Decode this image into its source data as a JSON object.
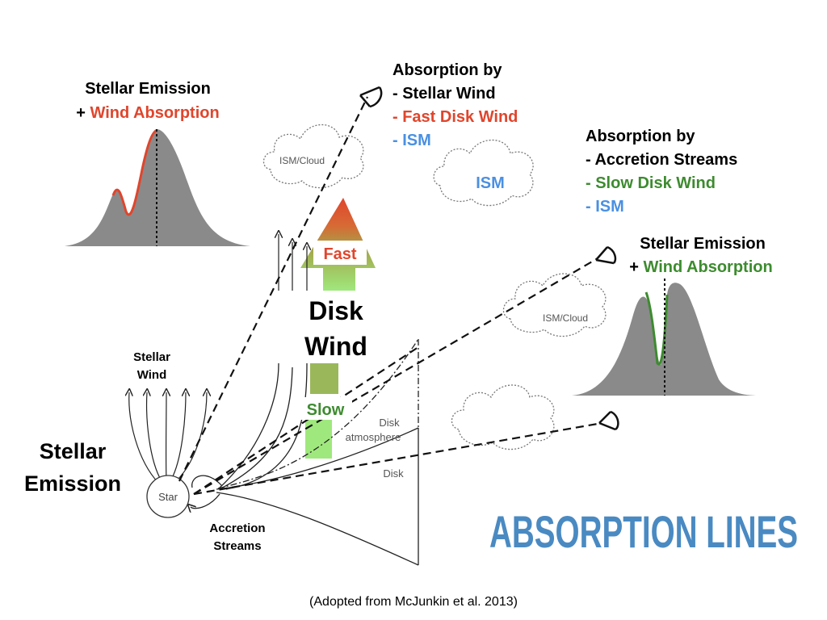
{
  "colors": {
    "red": "#e0452c",
    "green": "#3d8b2f",
    "blue": "#4a90e2",
    "title_blue": "#4a8ac2",
    "gray_fill": "#8a8a8a",
    "wind_bar_top": "#e0452c",
    "wind_bar_bottom": "#9fe080"
  },
  "left_panel": {
    "line1": "Stellar Emission",
    "line2_prefix": "+ ",
    "line2_highlight": "Wind Absorption"
  },
  "right_panel": {
    "line1": "Stellar Emission",
    "line2_prefix": "+ ",
    "line2_highlight": "Wind Absorption"
  },
  "absorption_top": {
    "heading": "Absorption by",
    "item1": "- Stellar Wind",
    "item2": "- Fast Disk Wind",
    "item3": "- ISM"
  },
  "absorption_right": {
    "heading": "Absorption by",
    "item1": "- Accretion Streams",
    "item2": "- Slow Disk Wind",
    "item3": "- ISM"
  },
  "clouds": {
    "ism_cloud_top": "ISM/Cloud",
    "ism_middle": "ISM",
    "ism_cloud_right": "ISM/Cloud"
  },
  "disk_wind": {
    "label_line1": "Disk",
    "label_line2": "Wind",
    "fast": "Fast",
    "slow": "Slow"
  },
  "stellar_wind": {
    "line1": "Stellar",
    "line2": "Wind"
  },
  "stellar_emission": {
    "line1": "Stellar",
    "line2": "Emission"
  },
  "star_label": "Star",
  "accretion": {
    "line1": "Accretion",
    "line2": "Streams"
  },
  "disk": {
    "atmosphere_line1": "Disk",
    "atmosphere_line2": "atmosphere",
    "disk": "Disk"
  },
  "title": "ABSORPTION LINES",
  "citation": "(Adopted from McJunkin et al. 2013)"
}
